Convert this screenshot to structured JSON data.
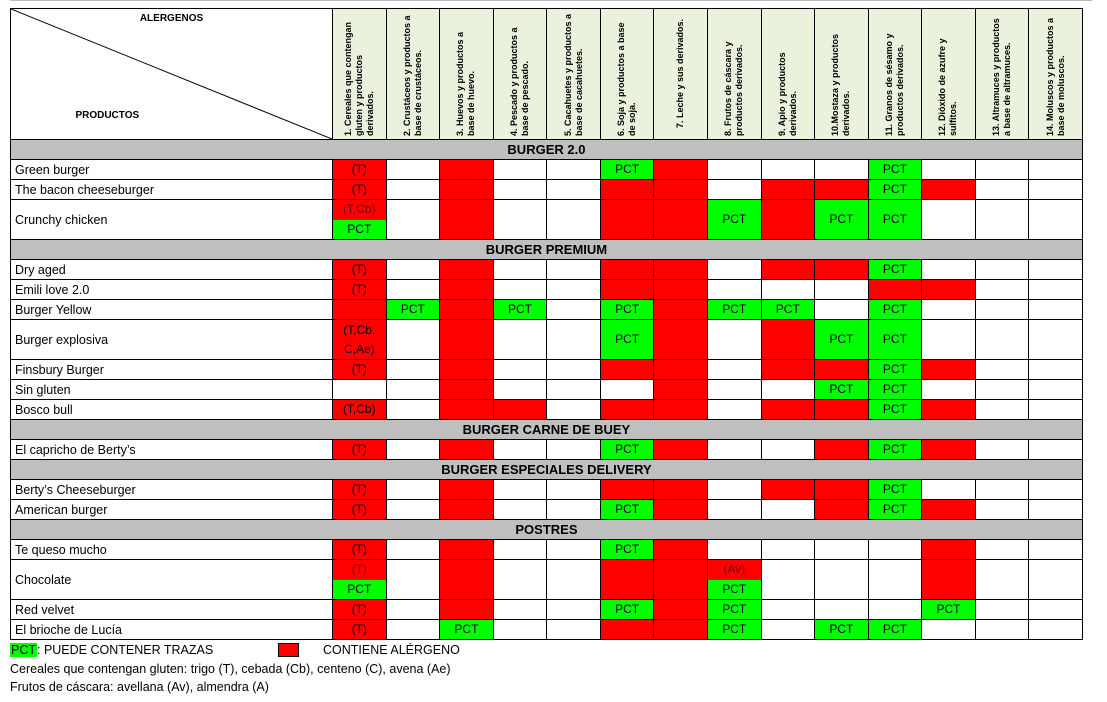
{
  "header": {
    "corner_top": "ALERGENOS",
    "corner_bottom": "PRODUCTOS",
    "allergens": [
      "1. Cereales que contengan gluten y productos derivados.",
      "2. Crustáceos y productos a base de crustáceos.",
      "3. Huevos y productos a base de huevo.",
      "4. Pescado y productos a base de pescado.",
      "5. Cacahuetes y productos a base de cacahuetes.",
      "6. Soja y productos a base de soja.",
      "7. Leche y sus derivados.",
      "8. Frutos de cáscara y productos derivados.",
      "9. Apio y productos derivados.",
      "10.Mostaza y productos derivados.",
      "11. Granos de sésamo y productos derivados.",
      "12. Dióxido de azufre y sulfitos.",
      "13. Altramuces y productos a base de altramuces.",
      "14. Moluscos y productos a base de moluscos."
    ]
  },
  "sections": [
    {
      "title": "BURGER 2.0",
      "products": [
        {
          "name": "Green burger",
          "tall": false,
          "cells": [
            {
              "c": "red",
              "t": "(T)"
            },
            {
              "c": "w"
            },
            {
              "c": "red"
            },
            {
              "c": "w"
            },
            {
              "c": "w"
            },
            {
              "c": "green",
              "t": "PCT"
            },
            {
              "c": "red"
            },
            {
              "c": "w"
            },
            {
              "c": "w"
            },
            {
              "c": "w"
            },
            {
              "c": "green",
              "t": "PCT"
            },
            {
              "c": "w"
            },
            {
              "c": "w"
            },
            {
              "c": "w"
            }
          ]
        },
        {
          "name": "The bacon cheeseburger",
          "tall": false,
          "cells": [
            {
              "c": "red",
              "t": "(T)"
            },
            {
              "c": "w"
            },
            {
              "c": "red"
            },
            {
              "c": "w"
            },
            {
              "c": "w"
            },
            {
              "c": "red"
            },
            {
              "c": "red"
            },
            {
              "c": "w"
            },
            {
              "c": "red"
            },
            {
              "c": "red"
            },
            {
              "c": "green",
              "t": "PCT"
            },
            {
              "c": "red"
            },
            {
              "c": "w"
            },
            {
              "c": "w"
            }
          ]
        },
        {
          "name": "Crunchy chicken",
          "tall": true,
          "cells": [
            {
              "c": "split",
              "top": {
                "c": "red",
                "t": "(T,Cb)"
              },
              "bottom": {
                "c": "green",
                "t": "PCT"
              }
            },
            {
              "c": "w"
            },
            {
              "c": "red"
            },
            {
              "c": "w"
            },
            {
              "c": "w"
            },
            {
              "c": "red"
            },
            {
              "c": "red"
            },
            {
              "c": "green",
              "t": "PCT"
            },
            {
              "c": "red"
            },
            {
              "c": "green",
              "t": "PCT"
            },
            {
              "c": "green",
              "t": "PCT"
            },
            {
              "c": "w"
            },
            {
              "c": "w"
            },
            {
              "c": "w"
            }
          ]
        }
      ]
    },
    {
      "title": "BURGER PREMIUM",
      "products": [
        {
          "name": "Dry aged",
          "tall": false,
          "cells": [
            {
              "c": "red",
              "t": "(T)"
            },
            {
              "c": "w"
            },
            {
              "c": "red"
            },
            {
              "c": "w"
            },
            {
              "c": "w"
            },
            {
              "c": "red"
            },
            {
              "c": "red"
            },
            {
              "c": "w"
            },
            {
              "c": "red"
            },
            {
              "c": "red"
            },
            {
              "c": "green",
              "t": "PCT"
            },
            {
              "c": "w"
            },
            {
              "c": "w"
            },
            {
              "c": "w"
            }
          ]
        },
        {
          "name": "Emili love 2.0",
          "tall": false,
          "cells": [
            {
              "c": "red",
              "t": "(T)"
            },
            {
              "c": "w"
            },
            {
              "c": "red"
            },
            {
              "c": "w"
            },
            {
              "c": "w"
            },
            {
              "c": "red"
            },
            {
              "c": "red"
            },
            {
              "c": "w"
            },
            {
              "c": "w"
            },
            {
              "c": "w"
            },
            {
              "c": "red"
            },
            {
              "c": "red"
            },
            {
              "c": "w"
            },
            {
              "c": "w"
            }
          ]
        },
        {
          "name": "Burger Yellow",
          "tall": false,
          "cells": [
            {
              "c": "red"
            },
            {
              "c": "green",
              "t": "PCT"
            },
            {
              "c": "red"
            },
            {
              "c": "green",
              "t": "PCT"
            },
            {
              "c": "w"
            },
            {
              "c": "green",
              "t": "PCT"
            },
            {
              "c": "red"
            },
            {
              "c": "green",
              "t": "PCT"
            },
            {
              "c": "green",
              "t": "PCT"
            },
            {
              "c": "w"
            },
            {
              "c": "green",
              "t": "PCT"
            },
            {
              "c": "w"
            },
            {
              "c": "w"
            },
            {
              "c": "w"
            }
          ]
        },
        {
          "name": "Burger explosiva",
          "tall": true,
          "cells": [
            {
              "c": "red",
              "t": "(T,Cb, C,Ae)"
            },
            {
              "c": "w"
            },
            {
              "c": "red"
            },
            {
              "c": "w"
            },
            {
              "c": "w"
            },
            {
              "c": "green",
              "t": "PCT"
            },
            {
              "c": "red"
            },
            {
              "c": "w"
            },
            {
              "c": "red"
            },
            {
              "c": "green",
              "t": "PCT"
            },
            {
              "c": "green",
              "t": "PCT"
            },
            {
              "c": "w"
            },
            {
              "c": "w"
            },
            {
              "c": "w"
            }
          ]
        },
        {
          "name": "Finsbury Burger",
          "tall": false,
          "cells": [
            {
              "c": "red",
              "t": "(T)"
            },
            {
              "c": "w"
            },
            {
              "c": "red"
            },
            {
              "c": "w"
            },
            {
              "c": "w"
            },
            {
              "c": "red"
            },
            {
              "c": "red"
            },
            {
              "c": "w"
            },
            {
              "c": "red"
            },
            {
              "c": "red"
            },
            {
              "c": "green",
              "t": "PCT"
            },
            {
              "c": "red"
            },
            {
              "c": "w"
            },
            {
              "c": "w"
            }
          ]
        },
        {
          "name": "Sin gluten",
          "tall": false,
          "cells": [
            {
              "c": "w"
            },
            {
              "c": "w"
            },
            {
              "c": "red"
            },
            {
              "c": "w"
            },
            {
              "c": "w"
            },
            {
              "c": "w"
            },
            {
              "c": "red"
            },
            {
              "c": "w"
            },
            {
              "c": "w"
            },
            {
              "c": "green",
              "t": "PCT"
            },
            {
              "c": "green",
              "t": "PCT"
            },
            {
              "c": "w"
            },
            {
              "c": "w"
            },
            {
              "c": "w"
            }
          ]
        },
        {
          "name": "Bosco bull",
          "tall": false,
          "cells": [
            {
              "c": "red",
              "t": "(T,Cb)"
            },
            {
              "c": "w"
            },
            {
              "c": "red"
            },
            {
              "c": "red"
            },
            {
              "c": "w"
            },
            {
              "c": "red"
            },
            {
              "c": "red"
            },
            {
              "c": "w"
            },
            {
              "c": "red"
            },
            {
              "c": "red"
            },
            {
              "c": "green",
              "t": "PCT"
            },
            {
              "c": "red"
            },
            {
              "c": "w"
            },
            {
              "c": "w"
            }
          ]
        }
      ]
    },
    {
      "title": "BURGER CARNE DE BUEY",
      "products": [
        {
          "name": "El capricho de Berty’s",
          "tall": false,
          "cells": [
            {
              "c": "red",
              "t": "(T)"
            },
            {
              "c": "w"
            },
            {
              "c": "red"
            },
            {
              "c": "w"
            },
            {
              "c": "w"
            },
            {
              "c": "green",
              "t": "PCT"
            },
            {
              "c": "red"
            },
            {
              "c": "w"
            },
            {
              "c": "w"
            },
            {
              "c": "red"
            },
            {
              "c": "green",
              "t": "PCT"
            },
            {
              "c": "red"
            },
            {
              "c": "w"
            },
            {
              "c": "w"
            }
          ]
        }
      ]
    },
    {
      "title": "BURGER ESPECIALES DELIVERY",
      "products": [
        {
          "name": "Berty’s Cheeseburger",
          "tall": false,
          "cells": [
            {
              "c": "red",
              "t": "(T)"
            },
            {
              "c": "w"
            },
            {
              "c": "red"
            },
            {
              "c": "w"
            },
            {
              "c": "w"
            },
            {
              "c": "red"
            },
            {
              "c": "red"
            },
            {
              "c": "w"
            },
            {
              "c": "red"
            },
            {
              "c": "red"
            },
            {
              "c": "green",
              "t": "PCT"
            },
            {
              "c": "w"
            },
            {
              "c": "w"
            },
            {
              "c": "w"
            }
          ]
        },
        {
          "name": "American burger",
          "tall": false,
          "cells": [
            {
              "c": "red",
              "t": "(T)"
            },
            {
              "c": "w"
            },
            {
              "c": "red"
            },
            {
              "c": "w"
            },
            {
              "c": "w"
            },
            {
              "c": "green",
              "t": "PCT"
            },
            {
              "c": "red"
            },
            {
              "c": "w"
            },
            {
              "c": "w"
            },
            {
              "c": "red"
            },
            {
              "c": "green",
              "t": "PCT"
            },
            {
              "c": "red"
            },
            {
              "c": "w"
            },
            {
              "c": "w"
            }
          ]
        }
      ]
    },
    {
      "title": "POSTRES",
      "products": [
        {
          "name": "Te queso mucho",
          "tall": false,
          "cells": [
            {
              "c": "red",
              "t": "(T)"
            },
            {
              "c": "w"
            },
            {
              "c": "red"
            },
            {
              "c": "w"
            },
            {
              "c": "w"
            },
            {
              "c": "green",
              "t": "PCT"
            },
            {
              "c": "red"
            },
            {
              "c": "w"
            },
            {
              "c": "w"
            },
            {
              "c": "w"
            },
            {
              "c": "w"
            },
            {
              "c": "red"
            },
            {
              "c": "w"
            },
            {
              "c": "w"
            }
          ]
        },
        {
          "name": "Chocolate",
          "tall": true,
          "cells": [
            {
              "c": "split",
              "top": {
                "c": "red",
                "t": "(T)"
              },
              "bottom": {
                "c": "green",
                "t": "PCT"
              }
            },
            {
              "c": "w"
            },
            {
              "c": "red"
            },
            {
              "c": "w"
            },
            {
              "c": "w"
            },
            {
              "c": "red"
            },
            {
              "c": "red"
            },
            {
              "c": "split",
              "top": {
                "c": "red",
                "t": "(Av)"
              },
              "bottom": {
                "c": "green",
                "t": "PCT"
              }
            },
            {
              "c": "w"
            },
            {
              "c": "w"
            },
            {
              "c": "w"
            },
            {
              "c": "red"
            },
            {
              "c": "w"
            },
            {
              "c": "w"
            }
          ]
        },
        {
          "name": "Red velvet",
          "tall": false,
          "cells": [
            {
              "c": "red",
              "t": "(T)"
            },
            {
              "c": "w"
            },
            {
              "c": "red"
            },
            {
              "c": "w"
            },
            {
              "c": "w"
            },
            {
              "c": "green",
              "t": "PCT"
            },
            {
              "c": "red"
            },
            {
              "c": "green",
              "t": "PCT"
            },
            {
              "c": "w"
            },
            {
              "c": "w"
            },
            {
              "c": "w"
            },
            {
              "c": "green",
              "t": "PCT"
            },
            {
              "c": "w"
            },
            {
              "c": "w"
            }
          ]
        },
        {
          "name": "El brioche de Lucía",
          "tall": false,
          "cells": [
            {
              "c": "red",
              "t": "(T)"
            },
            {
              "c": "w"
            },
            {
              "c": "green",
              "t": "PCT"
            },
            {
              "c": "w"
            },
            {
              "c": "w"
            },
            {
              "c": "red"
            },
            {
              "c": "red"
            },
            {
              "c": "green",
              "t": "PCT"
            },
            {
              "c": "w"
            },
            {
              "c": "green",
              "t": "PCT"
            },
            {
              "c": "green",
              "t": "PCT"
            },
            {
              "c": "w"
            },
            {
              "c": "w"
            },
            {
              "c": "w"
            }
          ]
        }
      ]
    }
  ],
  "legend": {
    "pct_code": "PCT",
    "pct_text": ": PUEDE CONTENER TRAZAS",
    "red_text": "CONTIENE ALÉRGENO",
    "line1": "Cereales que contengan gluten: trigo (T), cebada (Cb), centeno (C), avena (Ae)",
    "line2": "Frutos de cáscara: avellana (Av), almendra (A)"
  },
  "colors": {
    "contains": "#ff0000",
    "traces": "#00ff00",
    "section_bg": "#bfbfbf",
    "header_bg": "#eaf1dd"
  }
}
